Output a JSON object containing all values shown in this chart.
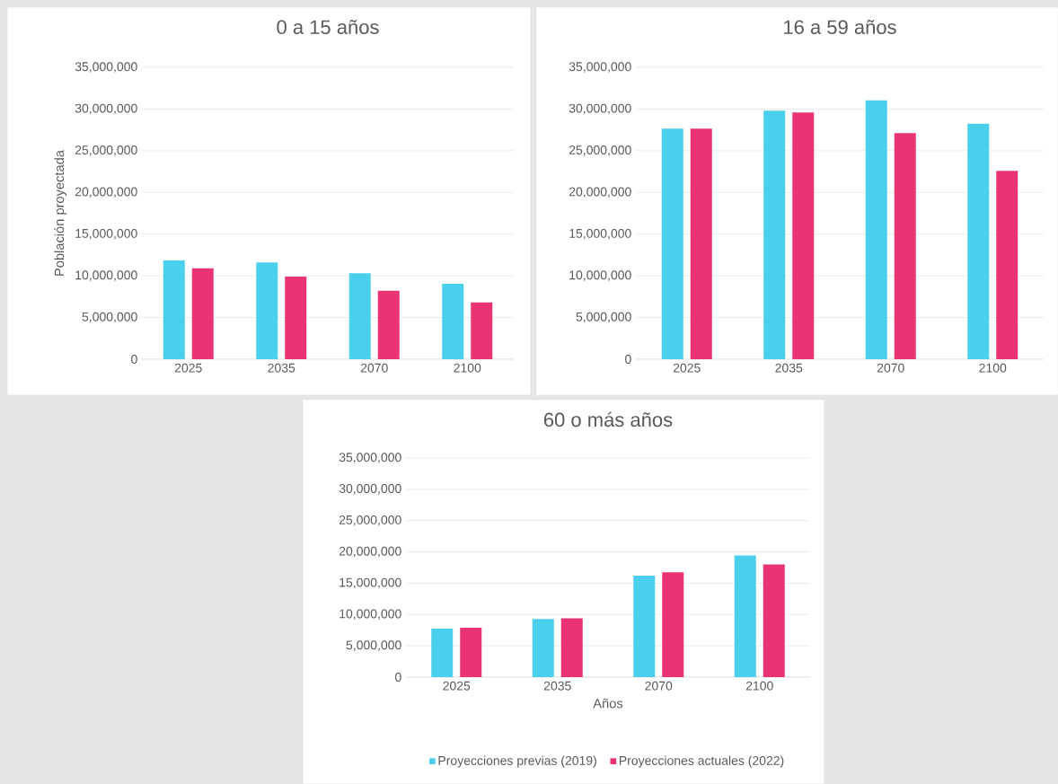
{
  "chart_data": [
    {
      "type": "bar",
      "title": "0 a 15 años",
      "ylabel": "Población proyectada",
      "categories": [
        "2025",
        "2035",
        "2070",
        "2100"
      ],
      "series": [
        {
          "color": "#4acfed",
          "values": [
            11850000,
            11600000,
            10300000,
            9050000
          ]
        },
        {
          "color": "#ea3375",
          "values": [
            10900000,
            9900000,
            8200000,
            6800000
          ]
        }
      ],
      "ylim": [
        0,
        35000000
      ],
      "yticks": [
        0,
        {
          "value": 5000000,
          "label": "5,000,000"
        },
        {
          "value": 10000000,
          "label": "10,000,000"
        },
        {
          "value": 15000000,
          "label": "15,000,000"
        },
        {
          "value": 20000000,
          "label": "20,000,000"
        },
        {
          "value": 25000000,
          "label": "25,000,000"
        },
        {
          "value": 30000000,
          "label": "30,000,000"
        },
        {
          "value": 35000000,
          "label": "35,000,000"
        }
      ],
      "grid": "y"
    },
    {
      "type": "bar",
      "title": "16 a 59 años",
      "categories": [
        "2025",
        "2035",
        "2070",
        "2100"
      ],
      "series": [
        {
          "color": "#4acfed",
          "values": [
            27650000,
            29800000,
            31050000,
            28250000
          ]
        },
        {
          "color": "#ea3375",
          "values": [
            27650000,
            29600000,
            27100000,
            22600000
          ]
        }
      ],
      "ylim": [
        0,
        35000000
      ],
      "yticks": [
        0,
        {
          "value": 5000000,
          "label": "5,000,000"
        },
        {
          "value": 10000000,
          "label": "10,000,000"
        },
        {
          "value": 15000000,
          "label": "15,000,000"
        },
        {
          "value": 20000000,
          "label": "20,000,000"
        },
        {
          "value": 25000000,
          "label": "25,000,000"
        },
        {
          "value": 30000000,
          "label": "30,000,000"
        },
        {
          "value": 35000000,
          "label": "35,000,000"
        }
      ],
      "grid": "y"
    },
    {
      "type": "bar",
      "title": "60 o más años",
      "xlabel": "Años",
      "categories": [
        "2025",
        "2035",
        "2070",
        "2100"
      ],
      "series": [
        {
          "name": "Proyecciones previas (2019)",
          "color": "#4acfed",
          "values": [
            7750000,
            9300000,
            16200000,
            19450000
          ]
        },
        {
          "name": "Proyecciones actuales (2022)",
          "color": "#ea3375",
          "values": [
            7900000,
            9400000,
            16750000,
            18000000
          ]
        }
      ],
      "ylim": [
        0,
        35000000
      ],
      "yticks": [
        0,
        {
          "value": 5000000,
          "label": "5,000,000"
        },
        {
          "value": 10000000,
          "label": "10,000,000"
        },
        {
          "value": 15000000,
          "label": "15,000,000"
        },
        {
          "value": 20000000,
          "label": "20,000,000"
        },
        {
          "value": 25000000,
          "label": "25,000,000"
        },
        {
          "value": 30000000,
          "label": "30,000,000"
        },
        {
          "value": 35000000,
          "label": "35,000,000"
        }
      ],
      "grid": "y",
      "legend": "bottom"
    }
  ]
}
